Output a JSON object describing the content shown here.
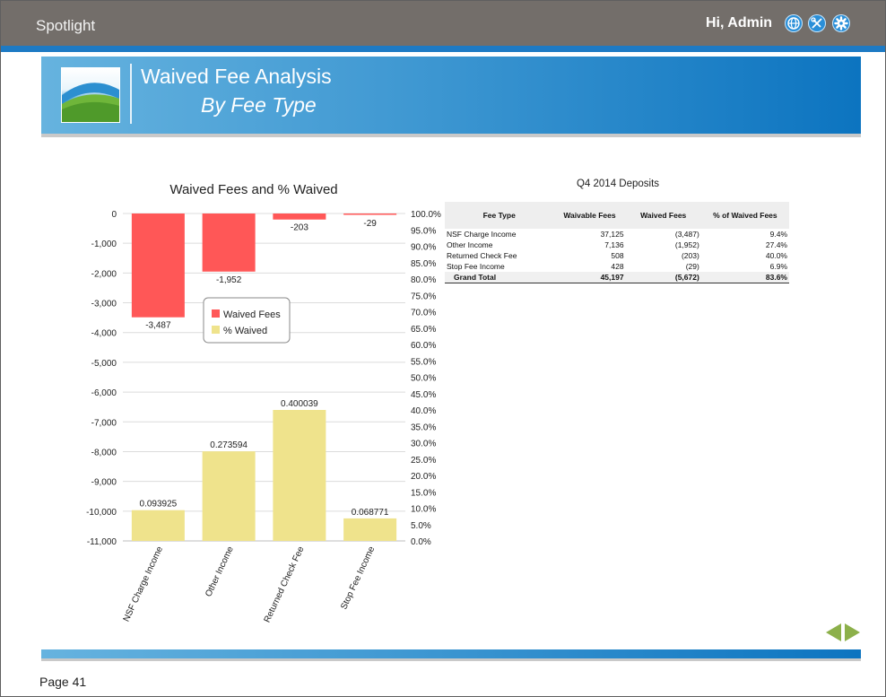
{
  "app": {
    "title": "Spotlight",
    "greeting": "Hi, Admin"
  },
  "header_icons": [
    {
      "name": "globe-icon"
    },
    {
      "name": "tools-icon"
    },
    {
      "name": "gear-icon"
    }
  ],
  "banner": {
    "title": "Waived Fee Analysis",
    "subtitle": "By Fee Type"
  },
  "chart_data": {
    "type": "bar",
    "title": "Waived Fees and % Waived",
    "categories": [
      "NSF Charge Income",
      "Other Income",
      "Returned Check Fee",
      "Stop Fee Income"
    ],
    "series": [
      {
        "name": "Waived Fees",
        "axis": "left",
        "color": "#ff5757",
        "values": [
          -3487,
          -1952,
          -203,
          -29
        ],
        "labels": [
          "-3,487",
          "-1,952",
          "-203",
          "-29"
        ]
      },
      {
        "name": "% Waived",
        "axis": "right",
        "color": "#efe38c",
        "values": [
          0.093925,
          0.273594,
          0.400039,
          0.068771
        ],
        "labels": [
          "0.093925",
          "0.273594",
          "0.400039",
          "0.068771"
        ]
      }
    ],
    "y_left": {
      "min": -11000,
      "max": 0,
      "step": 1000,
      "ticks": [
        "0",
        "-1,000",
        "-2,000",
        "-3,000",
        "-4,000",
        "-5,000",
        "-6,000",
        "-7,000",
        "-8,000",
        "-9,000",
        "-10,000",
        "-11,000"
      ]
    },
    "y_right": {
      "min": 0,
      "max": 1.0,
      "step": 0.05,
      "ticks": [
        "100.0%",
        "95.0%",
        "90.0%",
        "85.0%",
        "80.0%",
        "75.0%",
        "70.0%",
        "65.0%",
        "60.0%",
        "55.0%",
        "50.0%",
        "45.0%",
        "40.0%",
        "35.0%",
        "30.0%",
        "25.0%",
        "20.0%",
        "15.0%",
        "10.0%",
        "5.0%",
        "0.0%"
      ]
    },
    "legend_position": "center",
    "grid": true
  },
  "table": {
    "title": "Q4 2014 Deposits",
    "headers": [
      "Fee Type",
      "Waivable Fees",
      "Waived Fees",
      "% of Waived Fees"
    ],
    "rows": [
      [
        "NSF Charge Income",
        "37,125",
        "(3,487)",
        "9.4%"
      ],
      [
        "Other Income",
        "7,136",
        "(1,952)",
        "27.4%"
      ],
      [
        "Returned Check Fee",
        "508",
        "(203)",
        "40.0%"
      ],
      [
        "Stop Fee Income",
        "428",
        "(29)",
        "6.9%"
      ]
    ],
    "total": [
      "Grand Total",
      "45,197",
      "(5,672)",
      "83.6%"
    ]
  },
  "footer": {
    "page": "Page 41"
  },
  "colors": {
    "accent": "#1d7ac4",
    "topbar": "#736e6a",
    "nav_arrow": "#8cb04a"
  }
}
